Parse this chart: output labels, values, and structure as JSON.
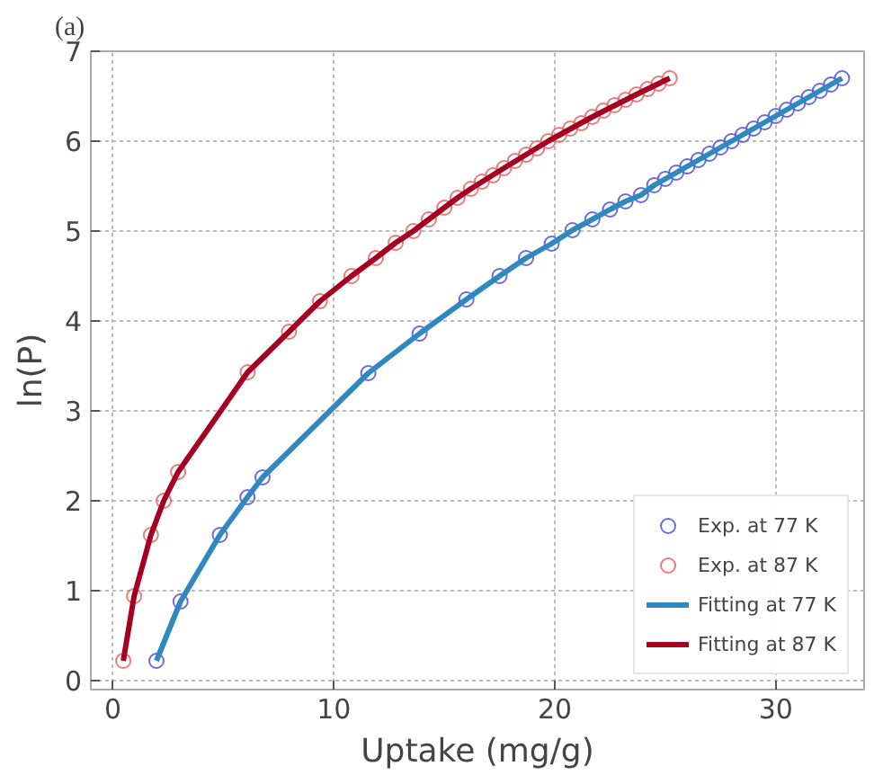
{
  "chart_data": {
    "type": "line",
    "title": "(a)",
    "xlabel": "Uptake (mg/g)",
    "ylabel": "ln(P)",
    "xlim": [
      -1,
      34
    ],
    "ylim": [
      -0.1,
      7
    ],
    "xticks": [
      0,
      10,
      20,
      30
    ],
    "yticks": [
      0,
      1,
      2,
      3,
      4,
      5,
      6,
      7
    ],
    "grid": true,
    "legend": "bottom right",
    "series": [
      {
        "name": "Exp. at 77 K",
        "type": "scatter",
        "marker": "circle",
        "color": "#5a5ae0",
        "x": [
          1.97,
          3.06,
          4.84,
          6.09,
          6.77,
          11.56,
          13.88,
          16.0,
          17.5,
          18.7,
          19.86,
          20.8,
          21.7,
          22.5,
          23.2,
          23.9,
          24.5,
          25.0,
          25.5,
          26.0,
          26.5,
          27.0,
          27.5,
          28.0,
          28.5,
          29.0,
          29.5,
          30.0,
          30.5,
          31.0,
          31.5,
          32.0,
          32.5,
          33.0
        ],
        "values": [
          0.22,
          0.88,
          1.62,
          2.04,
          2.26,
          3.42,
          3.86,
          4.24,
          4.5,
          4.7,
          4.86,
          5.01,
          5.13,
          5.24,
          5.33,
          5.4,
          5.51,
          5.58,
          5.65,
          5.72,
          5.79,
          5.86,
          5.93,
          6.0,
          6.07,
          6.14,
          6.21,
          6.28,
          6.35,
          6.42,
          6.49,
          6.56,
          6.63,
          6.7
        ]
      },
      {
        "name": "Exp. at 87 K",
        "type": "scatter",
        "marker": "circle",
        "color": "#ec6a6a",
        "x": [
          0.47,
          0.96,
          1.72,
          2.3,
          2.95,
          6.1,
          7.97,
          9.37,
          10.8,
          11.9,
          12.8,
          13.6,
          14.3,
          15.0,
          15.6,
          16.2,
          16.7,
          17.2,
          17.7,
          18.2,
          18.7,
          19.2,
          19.7,
          20.2,
          20.7,
          21.2,
          21.7,
          22.2,
          22.7,
          23.2,
          23.7,
          24.2,
          24.7,
          25.2
        ],
        "values": [
          0.22,
          0.94,
          1.62,
          2.0,
          2.32,
          3.43,
          3.88,
          4.22,
          4.5,
          4.7,
          4.87,
          5.0,
          5.13,
          5.26,
          5.37,
          5.47,
          5.55,
          5.62,
          5.7,
          5.78,
          5.85,
          5.92,
          6.0,
          6.07,
          6.14,
          6.2,
          6.27,
          6.34,
          6.4,
          6.46,
          6.52,
          6.58,
          6.64,
          6.7
        ]
      },
      {
        "name": "Fitting at 77 K",
        "color": "#2f89c0",
        "x": [
          1.97,
          3.06,
          4.84,
          6.09,
          6.77,
          11.56,
          13.88,
          16.0,
          17.5,
          18.7,
          19.86,
          20.8,
          21.7,
          22.5,
          23.2,
          23.9,
          24.5,
          26.0,
          28.0,
          30.0,
          32.0,
          33.0
        ],
        "values": [
          0.22,
          0.88,
          1.62,
          2.04,
          2.26,
          3.42,
          3.86,
          4.24,
          4.5,
          4.7,
          4.86,
          5.01,
          5.13,
          5.24,
          5.33,
          5.4,
          5.51,
          5.72,
          6.0,
          6.28,
          6.56,
          6.7
        ]
      },
      {
        "name": "Fitting at 87 K",
        "color": "#a50021",
        "x": [
          0.47,
          0.96,
          1.72,
          2.3,
          2.95,
          6.1,
          7.97,
          9.37,
          10.8,
          11.9,
          12.8,
          13.6,
          14.3,
          15.0,
          15.6,
          16.2,
          17.7,
          19.7,
          21.7,
          23.7,
          25.2
        ],
        "values": [
          0.22,
          0.94,
          1.62,
          2.0,
          2.32,
          3.43,
          3.88,
          4.22,
          4.5,
          4.7,
          4.87,
          5.0,
          5.13,
          5.26,
          5.37,
          5.47,
          5.7,
          6.0,
          6.27,
          6.52,
          6.7
        ]
      }
    ]
  }
}
